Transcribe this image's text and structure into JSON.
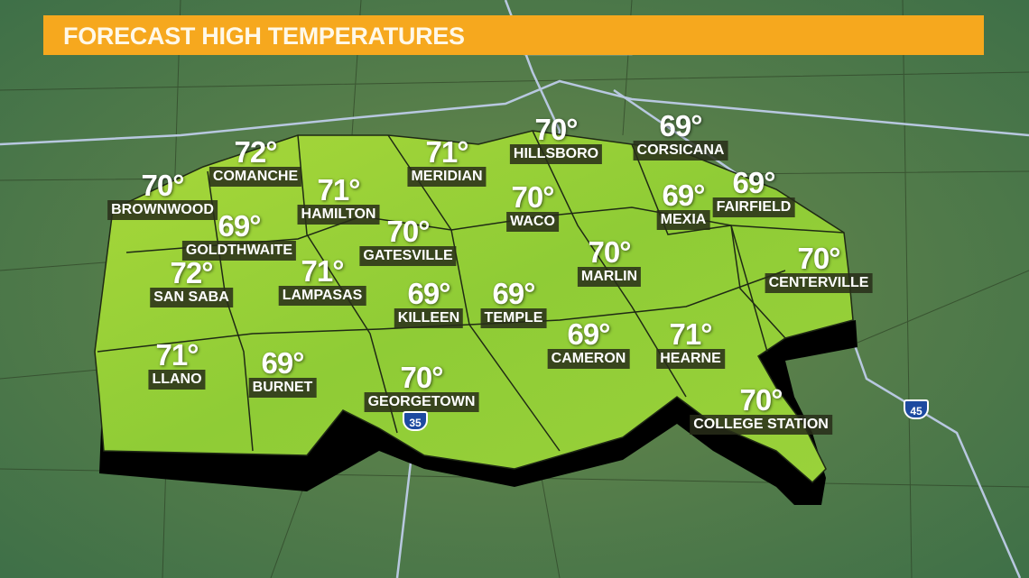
{
  "title": "FORECAST HIGH TEMPERATURES",
  "colors": {
    "banner": "#f6a81e",
    "region": "#9fd236",
    "background": "#4f7a45",
    "shadow": "#000000",
    "roads": "#b8c8e0"
  },
  "cities": [
    {
      "name": "COMANCHE",
      "temp": "72°"
    },
    {
      "name": "BROWNWOOD",
      "temp": "70°"
    },
    {
      "name": "GOLDTHWAITE",
      "temp": "69°"
    },
    {
      "name": "SAN SABA",
      "temp": "72°"
    },
    {
      "name": "LLANO",
      "temp": "71°"
    },
    {
      "name": "HAMILTON",
      "temp": "71°"
    },
    {
      "name": "MERIDIAN",
      "temp": "71°"
    },
    {
      "name": "GATESVILLE",
      "temp": "70°"
    },
    {
      "name": "LAMPASAS",
      "temp": "71°"
    },
    {
      "name": "BURNET",
      "temp": "69°"
    },
    {
      "name": "KILLEEN",
      "temp": "69°"
    },
    {
      "name": "TEMPLE",
      "temp": "69°"
    },
    {
      "name": "GEORGETOWN",
      "temp": "70°"
    },
    {
      "name": "HILLSBORO",
      "temp": "70°"
    },
    {
      "name": "WACO",
      "temp": "70°"
    },
    {
      "name": "CORSICANA",
      "temp": "69°"
    },
    {
      "name": "MEXIA",
      "temp": "69°"
    },
    {
      "name": "FAIRFIELD",
      "temp": "69°"
    },
    {
      "name": "MARLIN",
      "temp": "70°"
    },
    {
      "name": "CAMERON",
      "temp": "69°"
    },
    {
      "name": "HEARNE",
      "temp": "71°"
    },
    {
      "name": "CENTERVILLE",
      "temp": "70°"
    },
    {
      "name": "COLLEGE STATION",
      "temp": "70°"
    }
  ],
  "highways": [
    {
      "label": "35"
    },
    {
      "label": "45"
    }
  ]
}
